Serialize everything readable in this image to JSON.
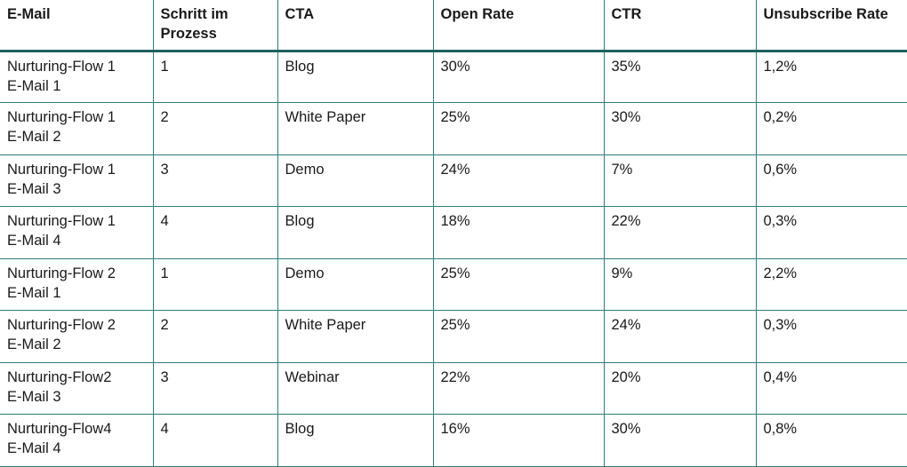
{
  "table": {
    "header": [
      "E-Mail",
      "Schritt im\nProzess",
      "CTA",
      "Open Rate",
      "CTR",
      "Unsubscribe Rate"
    ],
    "rows": [
      [
        "Nurturing-Flow 1\nE-Mail 1",
        "1",
        "Blog",
        "30%",
        "35%",
        "1,2%"
      ],
      [
        "Nurturing-Flow 1\nE-Mail 2",
        "2",
        "White Paper",
        "25%",
        "30%",
        "0,2%"
      ],
      [
        "Nurturing-Flow 1\nE-Mail 3",
        "3",
        "Demo",
        "24%",
        "7%",
        "0,6%"
      ],
      [
        "Nurturing-Flow 1\nE-Mail 4",
        "4",
        "Blog",
        "18%",
        "22%",
        "0,3%"
      ],
      [
        "Nurturing-Flow 2\nE-Mail 1",
        "1",
        "Demo",
        "25%",
        "9%",
        "2,2%"
      ],
      [
        "Nurturing-Flow 2\nE-Mail 2",
        "2",
        "White Paper",
        "25%",
        "24%",
        "0,3%"
      ],
      [
        "Nurturing-Flow2\nE-Mail 3",
        "3",
        "Webinar",
        "22%",
        "20%",
        "0,4%"
      ],
      [
        "Nurturing-Flow4\nE-Mail 4",
        "4",
        "Blog",
        "16%",
        "30%",
        "0,8%"
      ]
    ]
  }
}
